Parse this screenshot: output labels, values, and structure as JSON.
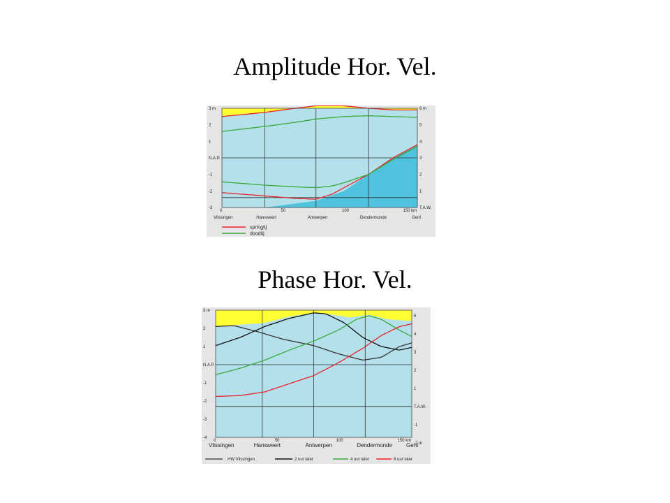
{
  "slide": {
    "title1": "Amplitude  Hor. Vel.",
    "title2": "Phase Hor. Vel."
  },
  "colors": {
    "sky": "#ffff33",
    "water": "#b3e0ea",
    "bed": "#4fc3de",
    "springtij": "#e8232b",
    "doodtij": "#3aa83a",
    "hw_vlissingen": "#333333",
    "uur2": "#111111",
    "uur4": "#3aa83a",
    "uur6": "#e8232b"
  },
  "chart_data": [
    {
      "type": "line",
      "x_unit": "km",
      "xlim": [
        0,
        160
      ],
      "ylim_left": [
        -3,
        3
      ],
      "ylim_right": [
        0,
        6
      ],
      "right_offset": 3,
      "left_ticks": [
        {
          "v": 3,
          "label": "3 m"
        },
        {
          "v": 2,
          "label": "2"
        },
        {
          "v": 1,
          "label": "1"
        },
        {
          "v": 0,
          "label": "N.A.P."
        },
        {
          "v": -1,
          "label": "-1"
        },
        {
          "v": -2,
          "label": "-2"
        },
        {
          "v": -3,
          "label": "-3"
        }
      ],
      "right_ticks": [
        {
          "v": 6,
          "label": "6 m"
        },
        {
          "v": 5,
          "label": "5"
        },
        {
          "v": 4,
          "label": "4"
        },
        {
          "v": 3,
          "label": "3"
        },
        {
          "v": 2,
          "label": "2"
        },
        {
          "v": 1,
          "label": "1"
        },
        {
          "v": 0,
          "label": "T.A.W."
        }
      ],
      "x_ticks": [
        {
          "v": 0,
          "label": "0"
        },
        {
          "v": 50,
          "label": "50"
        },
        {
          "v": 100,
          "label": "100"
        },
        {
          "v": 150,
          "label": "150 km"
        }
      ],
      "locations": [
        {
          "x": 0,
          "label": "Vlissingen"
        },
        {
          "x": 35,
          "label": "Hansweert"
        },
        {
          "x": 77,
          "label": "Antwerpen"
        },
        {
          "x": 120,
          "label": "Dendermonde"
        },
        {
          "x": 160,
          "label": "Gent"
        }
      ],
      "bed": {
        "x": [
          0,
          35,
          77,
          100,
          120,
          140,
          160
        ],
        "y": [
          -3,
          -3,
          -2.6,
          -2.0,
          -1.0,
          0.0,
          0.8
        ]
      },
      "series": [
        {
          "name": "springtij",
          "color_key": "springtij",
          "upper": {
            "x": [
              0,
              35,
              60,
              77,
              100,
              120,
              140,
              160
            ],
            "y": [
              2.5,
              2.75,
              3.0,
              3.15,
              3.15,
              3.0,
              2.9,
              2.9
            ]
          },
          "lower": {
            "x": [
              0,
              35,
              60,
              77,
              90,
              100,
              120,
              140,
              160
            ],
            "y": [
              -2.1,
              -2.3,
              -2.45,
              -2.5,
              -2.2,
              -1.8,
              -1.0,
              0.0,
              0.8
            ]
          }
        },
        {
          "name": "doodtij",
          "color_key": "doodtij",
          "upper": {
            "x": [
              0,
              35,
              60,
              77,
              100,
              120,
              140,
              160
            ],
            "y": [
              1.6,
              1.9,
              2.15,
              2.35,
              2.5,
              2.55,
              2.5,
              2.45
            ]
          },
          "lower": {
            "x": [
              0,
              35,
              60,
              77,
              90,
              100,
              120,
              140,
              160
            ],
            "y": [
              -1.45,
              -1.65,
              -1.75,
              -1.8,
              -1.7,
              -1.5,
              -1.0,
              -0.1,
              0.7
            ]
          }
        }
      ]
    },
    {
      "type": "line",
      "x_unit": "km",
      "xlim": [
        0,
        160
      ],
      "ylim_left": [
        -4,
        3
      ],
      "ylim_right": [
        -2,
        6
      ],
      "right_offset": 2.3,
      "left_ticks": [
        {
          "v": 3,
          "label": "3 m"
        },
        {
          "v": 2,
          "label": "2"
        },
        {
          "v": 1,
          "label": "1"
        },
        {
          "v": 0,
          "label": "N.A.P."
        },
        {
          "v": -1,
          "label": "-1"
        },
        {
          "v": -2,
          "label": "-2"
        },
        {
          "v": -3,
          "label": "-3"
        },
        {
          "v": -4,
          "label": "-4"
        }
      ],
      "right_ticks": [
        {
          "v": 6,
          "label": "6 m"
        },
        {
          "v": 5,
          "label": "5"
        },
        {
          "v": 4,
          "label": "4"
        },
        {
          "v": 3,
          "label": "3"
        },
        {
          "v": 2,
          "label": "2"
        },
        {
          "v": 1,
          "label": "1"
        },
        {
          "v": 0,
          "label": "T.A.W."
        },
        {
          "v": -1,
          "label": "-1"
        },
        {
          "v": -2,
          "label": "-2 m"
        }
      ],
      "x_ticks": [
        {
          "v": 0,
          "label": "0"
        },
        {
          "v": 50,
          "label": "50"
        },
        {
          "v": 100,
          "label": "100"
        },
        {
          "v": 150,
          "label": "150 km"
        }
      ],
      "locations": [
        {
          "x": 0,
          "label": "Vlissingen"
        },
        {
          "x": 38,
          "label": "Hansweert"
        },
        {
          "x": 80,
          "label": "Antwerpen"
        },
        {
          "x": 122,
          "label": "Dendermonde"
        },
        {
          "x": 160,
          "label": "Gent"
        }
      ],
      "envelope": {
        "x": [
          0,
          20,
          40,
          60,
          80,
          95,
          110,
          125,
          140,
          160
        ],
        "y": [
          2.1,
          2.2,
          2.3,
          2.65,
          2.85,
          2.75,
          2.6,
          2.75,
          2.5,
          2.4
        ]
      },
      "series": [
        {
          "name": "HW Vlissingen",
          "color_key": "hw_vlissingen",
          "x": [
            0,
            15,
            35,
            55,
            80,
            100,
            120,
            135,
            150,
            160
          ],
          "y": [
            2.1,
            2.15,
            1.8,
            1.4,
            1.05,
            0.6,
            0.25,
            0.4,
            1.0,
            1.2
          ]
        },
        {
          "name": "2 uur later",
          "color_key": "uur2",
          "x": [
            0,
            20,
            40,
            60,
            80,
            90,
            105,
            120,
            135,
            150,
            160
          ],
          "y": [
            1.05,
            1.5,
            2.1,
            2.55,
            2.85,
            2.8,
            2.3,
            1.5,
            1.0,
            0.8,
            0.95
          ]
        },
        {
          "name": "4 uur later",
          "color_key": "uur4",
          "x": [
            0,
            20,
            40,
            60,
            80,
            100,
            115,
            125,
            135,
            150,
            160
          ],
          "y": [
            -0.55,
            -0.2,
            0.25,
            0.8,
            1.3,
            1.9,
            2.5,
            2.7,
            2.5,
            1.9,
            1.55
          ]
        },
        {
          "name": "6 uur later",
          "color_key": "uur6",
          "x": [
            0,
            20,
            40,
            60,
            80,
            100,
            120,
            135,
            150,
            160
          ],
          "y": [
            -1.75,
            -1.7,
            -1.5,
            -1.05,
            -0.6,
            0.1,
            0.9,
            1.6,
            2.1,
            2.25
          ]
        }
      ]
    }
  ]
}
